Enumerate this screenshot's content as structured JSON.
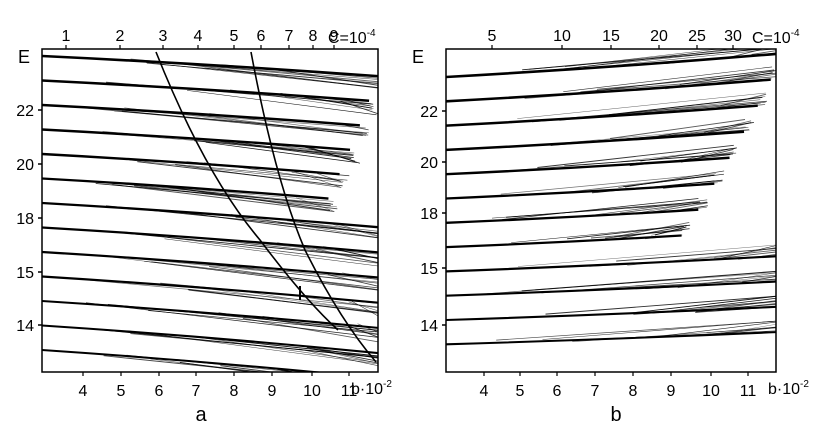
{
  "chart_data": [
    {
      "type": "line",
      "panel_label": "a",
      "ylabel": "E",
      "xlabel_base": "b·10",
      "xlabel_exp": "-2",
      "top_label_base": "C=10",
      "top_label_exp": "-4",
      "x_ticks": [
        "4",
        "5",
        "6",
        "7",
        "8",
        "9",
        "10",
        "11"
      ],
      "y_ticks": [
        "22",
        "20",
        "18",
        "15",
        "14"
      ],
      "top_ticks": [
        "1",
        "2",
        "3",
        "4",
        "5",
        "6",
        "7",
        "8",
        "9"
      ],
      "xlim": [
        3,
        12.5
      ],
      "levels": 13
    },
    {
      "type": "line",
      "panel_label": "b",
      "ylabel": "E",
      "xlabel_base": "b·10",
      "xlabel_exp": "-2",
      "top_label_base": "C=10",
      "top_label_exp": "-4",
      "x_ticks": [
        "4",
        "5",
        "6",
        "7",
        "8",
        "9",
        "10",
        "11"
      ],
      "y_ticks": [
        "22",
        "20",
        "18",
        "15",
        "14"
      ],
      "top_ticks": [
        "5",
        "10",
        "15",
        "20",
        "25",
        "30"
      ],
      "xlim": [
        3,
        12
      ],
      "levels": 12
    }
  ]
}
